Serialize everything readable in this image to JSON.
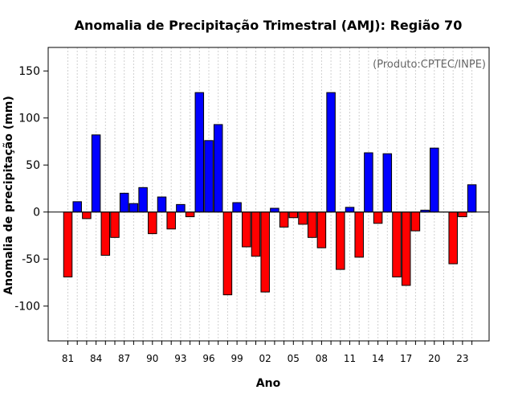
{
  "chart_data": {
    "type": "bar",
    "title": "Anomalia de Precipitação Trimestral (AMJ): Região 70",
    "xlabel": "Ano",
    "ylabel": "Anomalia de precipitação (mm)",
    "annotation": "(Produto:CPTEC/INPE)",
    "ylim": [
      -137,
      175
    ],
    "yticks": [
      -100,
      -50,
      0,
      50,
      100,
      150
    ],
    "categories": [
      "1981",
      "1982",
      "1983",
      "1984",
      "1985",
      "1986",
      "1987",
      "1988",
      "1989",
      "1990",
      "1991",
      "1992",
      "1993",
      "1994",
      "1995",
      "1996",
      "1997",
      "1998",
      "1999",
      "2000",
      "2001",
      "2002",
      "2003",
      "2004",
      "2005",
      "2006",
      "2007",
      "2008",
      "2009",
      "2010",
      "2011",
      "2012",
      "2013",
      "2014",
      "2015",
      "2016",
      "2017",
      "2018",
      "2019",
      "2020",
      "2021",
      "2022",
      "2023",
      "2024"
    ],
    "x_tick_labels": [
      "81",
      "84",
      "87",
      "90",
      "93",
      "96",
      "99",
      "02",
      "05",
      "08",
      "11",
      "14",
      "17",
      "20",
      "23"
    ],
    "x_tick_step": 3,
    "values": [
      -69,
      11,
      -7,
      82,
      -46,
      -27,
      20,
      9,
      26,
      -23,
      16,
      -18,
      8,
      -5,
      127,
      76,
      93,
      -88,
      10,
      -37,
      -47,
      -85,
      4,
      -16,
      -6,
      -13,
      -27,
      -38,
      127,
      -61,
      5,
      -48,
      63,
      -12,
      62,
      -69,
      -78,
      -20,
      2,
      68,
      0,
      -55,
      -5,
      29
    ],
    "positive_color": "#0000ff",
    "negative_color": "#ff0000",
    "grid": "vertical dotted lines at each year",
    "zero_line": true
  }
}
